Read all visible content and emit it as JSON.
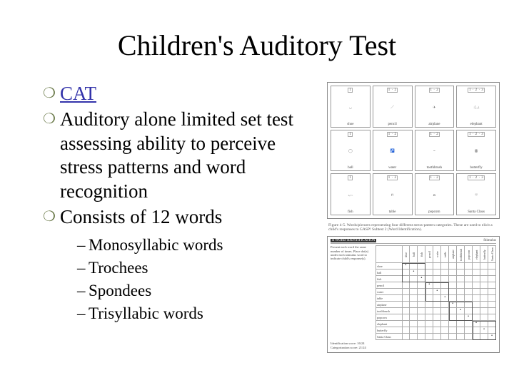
{
  "title": "Children's Auditory Test",
  "bullets": [
    {
      "text": "CAT",
      "link": true
    },
    {
      "text": "Auditory alone limited set test assessing ability to perceive stress patterns and word recognition",
      "link": false
    },
    {
      "text": "Consists of 12 words",
      "link": false
    }
  ],
  "sub_bullets": [
    "Monosyllabic words",
    "Trochees",
    "Spondees",
    "Trisyllabic words"
  ],
  "figure1": {
    "cells": [
      {
        "num": "1",
        "label": "shoe",
        "glyph": "◡"
      },
      {
        "num": "1 · 2",
        "label": "pencil",
        "glyph": "／"
      },
      {
        "num": "1 · 2",
        "label": "airplane",
        "glyph": "✈"
      },
      {
        "num": "1 · 2 · 3",
        "label": "elephant",
        "glyph": "𓃰"
      },
      {
        "num": "1",
        "label": "ball",
        "glyph": "◯"
      },
      {
        "num": "1 · 2",
        "label": "water",
        "glyph": "🚰"
      },
      {
        "num": "1 · 2",
        "label": "toothbrush",
        "glyph": "⎯"
      },
      {
        "num": "1 · 2 · 3",
        "label": "butterfly",
        "glyph": "ꙮ"
      },
      {
        "num": "1",
        "label": "fish",
        "glyph": "𓆟"
      },
      {
        "num": "1 · 2",
        "label": "table",
        "glyph": "⊓"
      },
      {
        "num": "1 · 2",
        "label": "popcorn",
        "glyph": "⩍"
      },
      {
        "num": "1 · 2 · 3",
        "label": "Santa Claus",
        "glyph": "☺"
      }
    ],
    "caption": "Figure 4-5. Words/pictures representing four different stress-pattern categories. These are used to elicit a child's responses to GASP! Subtest 2 (Word Identification)."
  },
  "figure2": {
    "header_left": "II  WORD IDENTIFICATION",
    "header_right": "Stimulus",
    "instructions": "Present each word the same number of times.\n\nPlace dot(s) under each stimulus word to indicate child's response(s).",
    "words": [
      "shoe",
      "ball",
      "fish",
      "pencil",
      "water",
      "table",
      "airplane",
      "toothbrush",
      "popcorn",
      "elephant",
      "butterfly",
      "Santa Claus"
    ],
    "footer": [
      "Identification score: 16/24",
      "Categorization score: 21/24"
    ]
  },
  "colors": {
    "bullet_marker": "#6b7a4a",
    "link_text": "#3333aa",
    "body_text": "#000000",
    "figure_border": "#888888",
    "figure_text": "#444444"
  }
}
